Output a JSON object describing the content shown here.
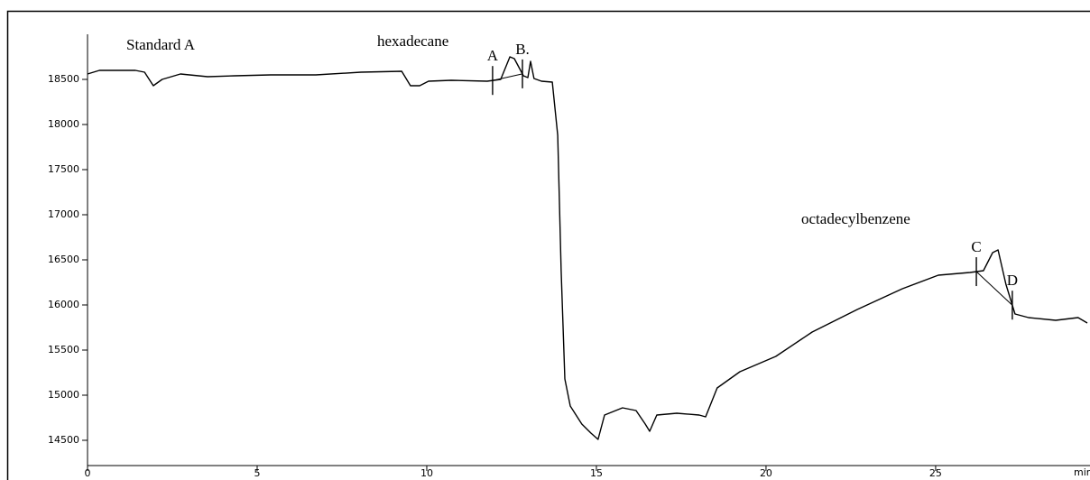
{
  "chart_data": {
    "type": "line",
    "x_label": "min",
    "annotations": [
      "Standard A",
      "hexadecane",
      "octadecylbenzene"
    ],
    "markers": [
      {
        "label": "A",
        "x": 11.94
      },
      {
        "label": "B.",
        "x": 12.82
      },
      {
        "label": "C",
        "x": 26.2
      },
      {
        "label": "D",
        "x": 27.26
      }
    ],
    "xlim": [
      0,
      29.55
    ],
    "ylim": [
      14220,
      19260
    ],
    "xticks": [
      0,
      5,
      10,
      15,
      20,
      25
    ],
    "yticks": [
      14500,
      15000,
      15500,
      16000,
      16500,
      17000,
      17500,
      18000,
      18500
    ],
    "series": [
      {
        "color": "#000000",
        "x": [
          0,
          0.35,
          1.41,
          1.68,
          1.94,
          2.2,
          2.74,
          3.54,
          4.34,
          5.4,
          6.73,
          8.06,
          9.26,
          9.52,
          9.79,
          10.05,
          10.72,
          11.78,
          12.18,
          12.45,
          12.58,
          12.85,
          12.98,
          13.06,
          13.16,
          13.38,
          13.7,
          13.86,
          13.96,
          14.07,
          14.23,
          14.57,
          14.84,
          15.05,
          15.24,
          15.77,
          16.17,
          16.44,
          16.57,
          16.78,
          17.37,
          18.03,
          18.22,
          18.56,
          19.23,
          20.29,
          21.36,
          22.69,
          24.02,
          25.08,
          26.01,
          26.41,
          26.68,
          26.84,
          27.07,
          27.34,
          27.74,
          28.54,
          29.2,
          29.47
        ],
        "values": [
          18560,
          18600,
          18600,
          18580,
          18430,
          18500,
          18560,
          18530,
          18540,
          18550,
          18550,
          18580,
          18590,
          18430,
          18430,
          18480,
          18490,
          18480,
          18500,
          18750,
          18730,
          18540,
          18520,
          18700,
          18510,
          18480,
          18470,
          17880,
          16380,
          15180,
          14880,
          14680,
          14580,
          14510,
          14780,
          14860,
          14830,
          14680,
          14600,
          14780,
          14800,
          14780,
          14760,
          15080,
          15260,
          15430,
          15700,
          15950,
          16180,
          16330,
          16360,
          16380,
          16580,
          16610,
          16230,
          15900,
          15860,
          15830,
          15860,
          15800
        ]
      }
    ]
  }
}
